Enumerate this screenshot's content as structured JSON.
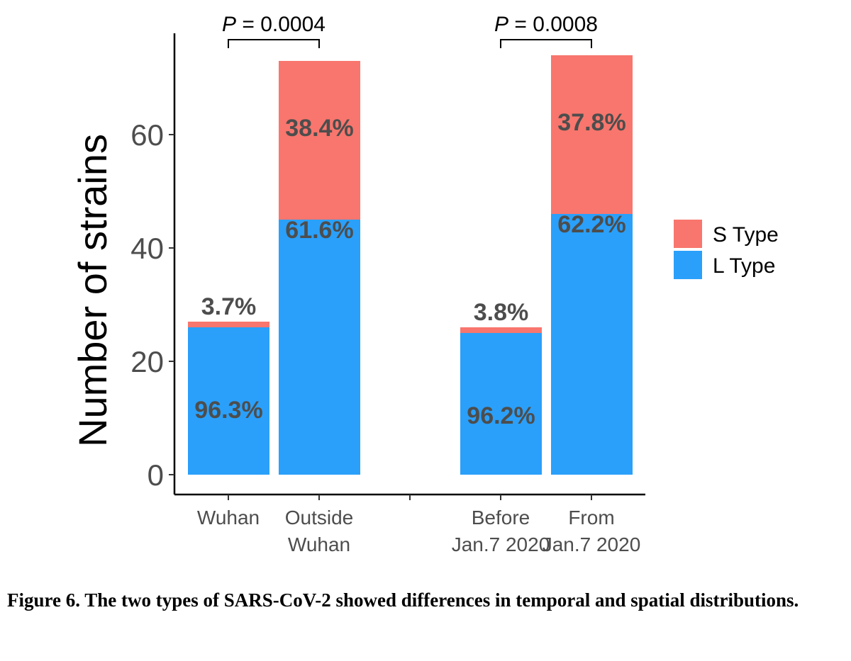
{
  "chart_data": {
    "type": "bar",
    "stacked": true,
    "categories": [
      [
        "Wuhan"
      ],
      [
        "Outside",
        "Wuhan"
      ],
      [
        "Before",
        "Jan.7 2020"
      ],
      [
        "From",
        "Jan.7 2020"
      ]
    ],
    "series": [
      {
        "name": "L Type",
        "color": "#2aa0fa",
        "values": [
          26,
          45,
          25,
          46
        ]
      },
      {
        "name": "S Type",
        "color": "#f8766d",
        "values": [
          1,
          28,
          1,
          28
        ]
      }
    ],
    "data_labels": {
      "L Type": [
        "96.3%",
        "61.6%",
        "96.2%",
        "62.2%"
      ],
      "S Type": [
        "3.7%",
        "38.4%",
        "3.8%",
        "37.8%"
      ]
    },
    "comparisons": [
      {
        "groups": [
          0,
          1
        ],
        "label_p": "P",
        "label_rest": " = 0.0004"
      },
      {
        "groups": [
          2,
          3
        ],
        "label_p": "P",
        "label_rest": " = 0.0008"
      }
    ],
    "ylabel": "Number of strains",
    "yticks": [
      0,
      20,
      40,
      60
    ],
    "ylim": [
      0,
      73
    ],
    "legend_position": "right",
    "legend_order": [
      "S Type",
      "L Type"
    ],
    "grid": false
  },
  "caption": "Figure 6. The two types of SARS-CoV-2 showed differences in temporal and spatial distributions."
}
